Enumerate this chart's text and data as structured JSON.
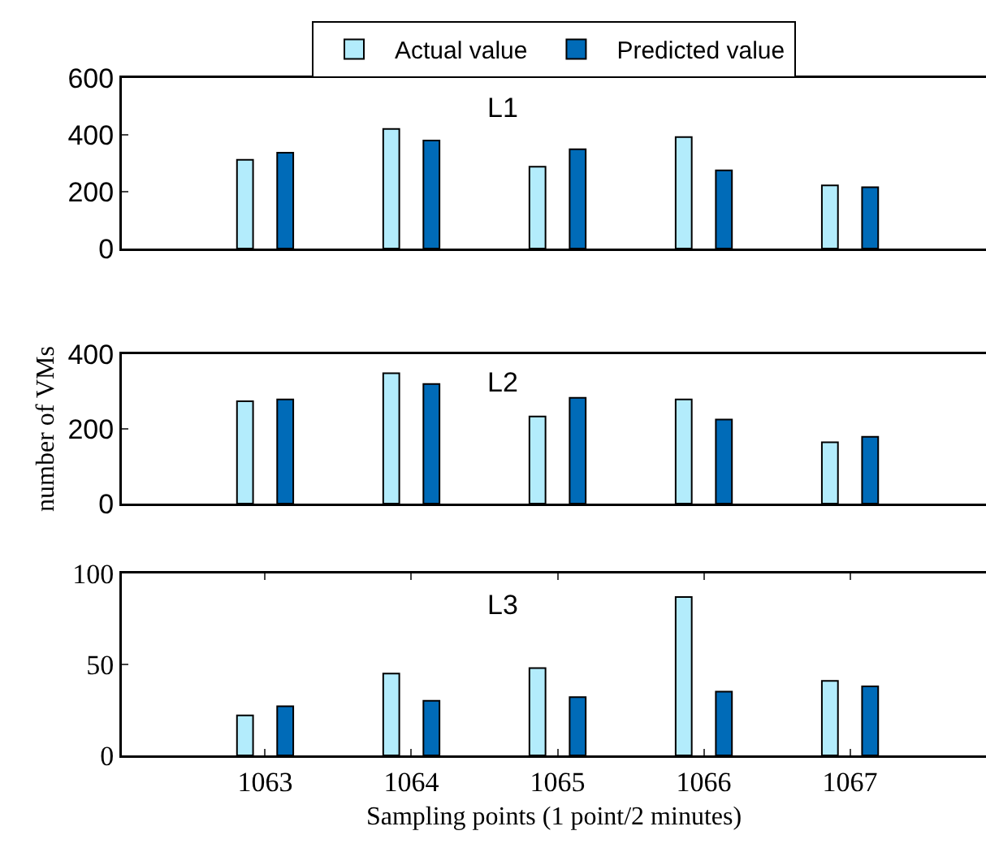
{
  "chart_data": [
    {
      "type": "bar",
      "title": "L1",
      "categories": [
        "1063",
        "1064",
        "1065",
        "1066",
        "1067"
      ],
      "ylim": [
        0,
        600
      ],
      "yticks": [
        0,
        200,
        400,
        600
      ],
      "tick_labels": "y",
      "legend": "top",
      "grid": false,
      "series": [
        {
          "name": "Actual value",
          "color": "#b3ecfc",
          "values": [
            312,
            421,
            288,
            392,
            222
          ]
        },
        {
          "name": "Predicted value",
          "color": "#006bb8",
          "values": [
            337,
            380,
            349,
            275,
            216
          ]
        }
      ]
    },
    {
      "type": "bar",
      "title": "L2",
      "ylabel": "number of VMs",
      "categories": [
        "1063",
        "1064",
        "1065",
        "1066",
        "1067"
      ],
      "ylim": [
        0,
        400
      ],
      "yticks": [
        0,
        200,
        400
      ],
      "tick_labels": "y",
      "grid": false,
      "series": [
        {
          "color": "#b3ecfc",
          "values": [
            274,
            349,
            233,
            279,
            164
          ]
        },
        {
          "color": "#006bb8",
          "values": [
            279,
            320,
            283,
            225,
            179
          ]
        }
      ]
    },
    {
      "type": "bar",
      "title": "L3",
      "xlabel": "Sampling points (1 point/2 minutes)",
      "categories": [
        "1063",
        "1064",
        "1065",
        "1066",
        "1067"
      ],
      "ylim": [
        0,
        100
      ],
      "yticks": [
        0,
        50,
        100
      ],
      "grid": false,
      "series": [
        {
          "color": "#b3ecfc",
          "values": [
            22,
            45,
            48,
            87,
            41
          ]
        },
        {
          "color": "#006bb8",
          "values": [
            27,
            30,
            32,
            35,
            38
          ]
        }
      ]
    }
  ]
}
